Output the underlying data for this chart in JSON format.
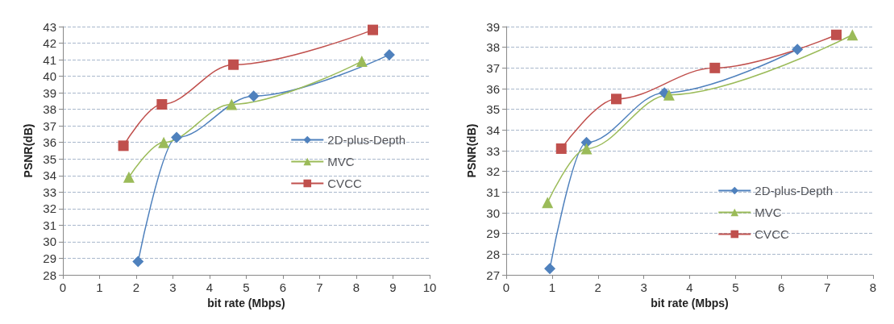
{
  "chart_data": [
    {
      "type": "line",
      "xlabel": "bit rate (Mbps)",
      "ylabel": "PSNR(dB)",
      "xlim": [
        0,
        10
      ],
      "xticks": [
        0,
        1,
        2,
        3,
        4,
        5,
        6,
        7,
        8,
        9,
        10
      ],
      "ylim": [
        28,
        43
      ],
      "yticks": [
        28,
        29,
        30,
        31,
        32,
        33,
        34,
        35,
        36,
        37,
        38,
        39,
        40,
        41,
        42,
        43
      ],
      "grid": "y",
      "legend": "right",
      "series": [
        {
          "name": "2D-plus-Depth",
          "color": "#4f81bd",
          "marker": "diamond",
          "x": [
            2.05,
            3.1,
            5.2,
            8.9
          ],
          "values": [
            28.8,
            36.3,
            38.8,
            41.3
          ]
        },
        {
          "name": "MVC",
          "color": "#9bbb59",
          "marker": "triangle",
          "x": [
            1.8,
            2.75,
            4.6,
            8.15
          ],
          "values": [
            33.9,
            36.0,
            38.3,
            40.9
          ]
        },
        {
          "name": "CVCC",
          "color": "#c0504d",
          "marker": "square",
          "x": [
            1.65,
            2.7,
            4.65,
            8.45
          ],
          "values": [
            35.8,
            38.3,
            40.7,
            42.8
          ]
        }
      ]
    },
    {
      "type": "line",
      "xlabel": "bit rate (Mbps)",
      "ylabel": "PSNR(dB)",
      "xlim": [
        0,
        8
      ],
      "xticks": [
        0,
        1,
        2,
        3,
        4,
        5,
        6,
        7,
        8
      ],
      "ylim": [
        27,
        39
      ],
      "yticks": [
        27,
        28,
        29,
        30,
        31,
        32,
        33,
        34,
        35,
        36,
        37,
        38,
        39
      ],
      "grid": "y",
      "legend": "bottom right",
      "series": [
        {
          "name": "2D-plus-Depth",
          "color": "#4f81bd",
          "marker": "diamond",
          "x": [
            0.95,
            1.75,
            3.45,
            6.35
          ],
          "values": [
            27.3,
            33.4,
            35.8,
            37.9
          ]
        },
        {
          "name": "MVC",
          "color": "#9bbb59",
          "marker": "triangle",
          "x": [
            0.9,
            1.75,
            3.55,
            7.55
          ],
          "values": [
            30.5,
            33.1,
            35.7,
            38.6
          ]
        },
        {
          "name": "CVCC",
          "color": "#c0504d",
          "marker": "square",
          "x": [
            1.2,
            2.4,
            4.55,
            7.2
          ],
          "values": [
            33.1,
            35.5,
            37.0,
            38.6
          ]
        }
      ]
    }
  ]
}
